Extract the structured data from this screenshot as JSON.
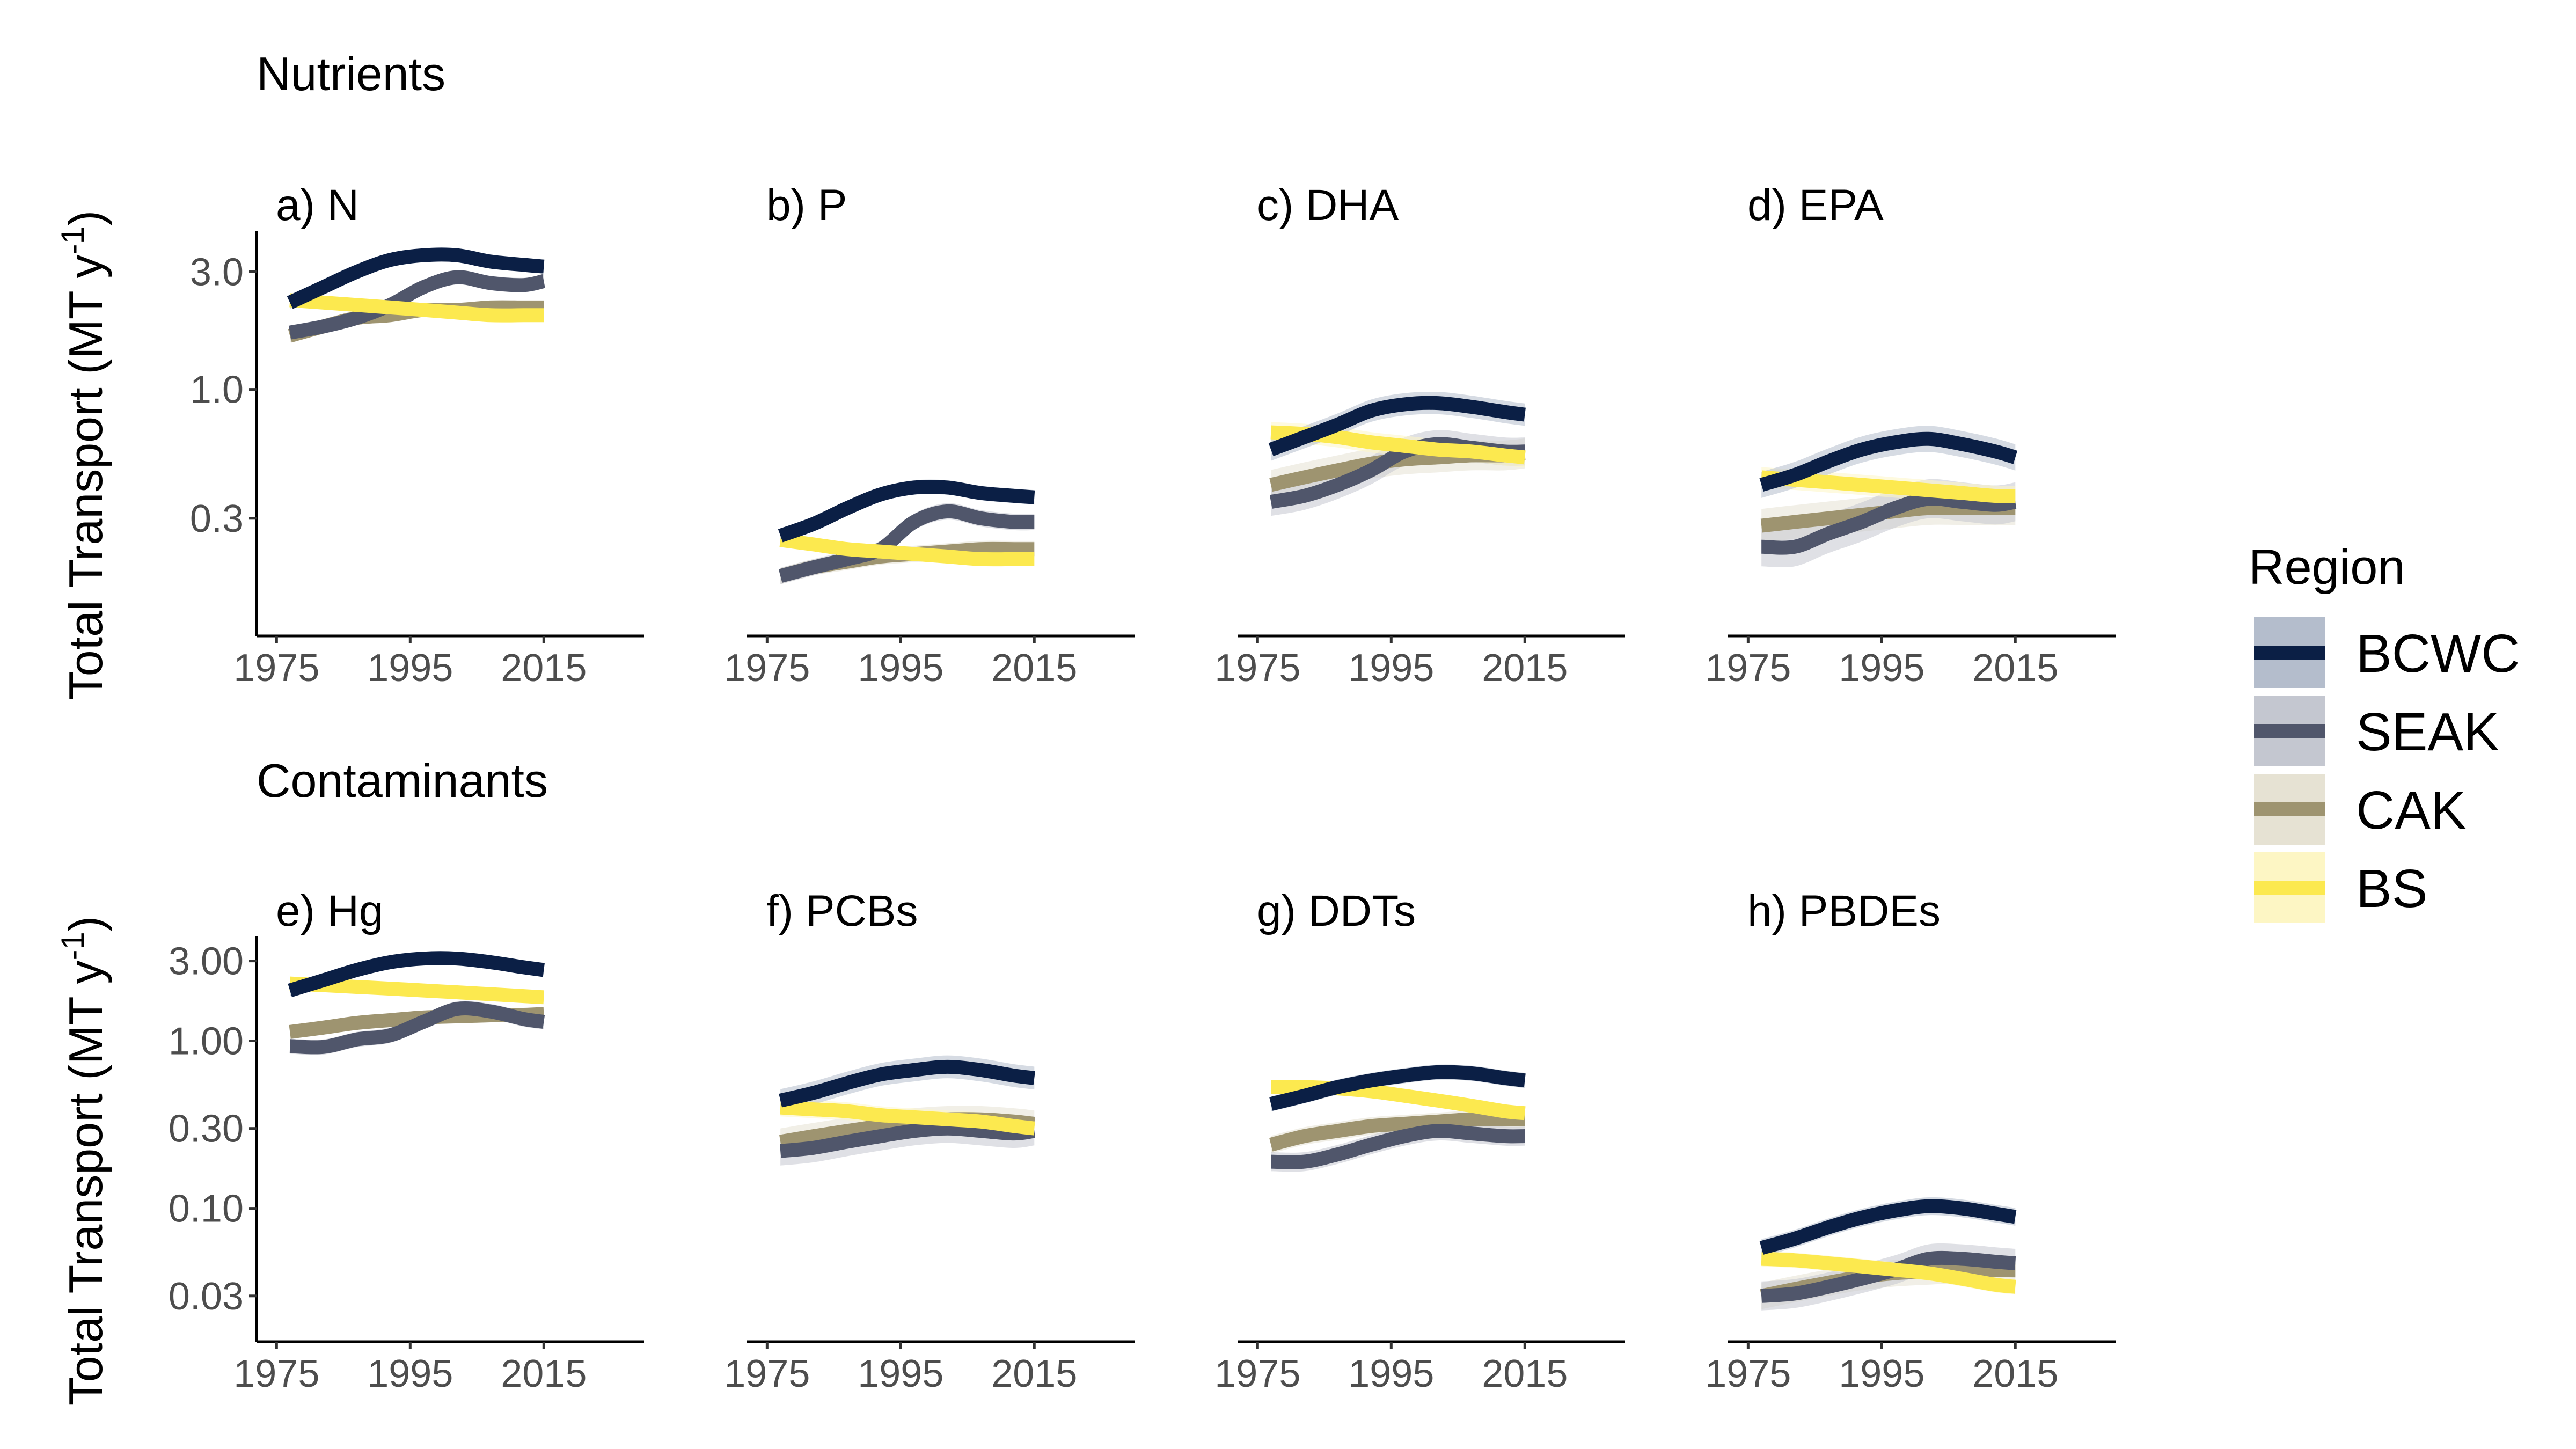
{
  "sections": [
    "Nutrients",
    "Contaminants"
  ],
  "ylabel": "Total Transport (MT y",
  "ylabel_sup": "-1",
  "ylabel_end": ")",
  "legend": {
    "title": "Region",
    "entries": [
      {
        "name": "BCWC",
        "color": "#0b1f45",
        "band": "#b4bdcc"
      },
      {
        "name": "SEAK",
        "color": "#50566b",
        "band": "#c4c7d0"
      },
      {
        "name": "CAK",
        "color": "#9e9470",
        "band": "#e6e2d3"
      },
      {
        "name": "BS",
        "color": "#fce94f",
        "band": "#fdf6c4"
      }
    ]
  },
  "colors": {
    "BCWC": "#0b1f45",
    "SEAK": "#50566b",
    "CAK": "#9e9470",
    "BS": "#fce94f"
  },
  "chart_data": [
    {
      "type": "line",
      "title": "a) N",
      "scale": "log",
      "xlim": [
        1972,
        2030
      ],
      "x_ticks": [
        "1975",
        "1995",
        "2015"
      ],
      "y_ticks": [
        {
          "v": 0.3,
          "label": "0.3"
        },
        {
          "v": 1,
          "label": "1.0"
        },
        {
          "v": 3,
          "label": "3.0"
        }
      ],
      "ylim": [
        0.1,
        4.4
      ],
      "x": [
        1977,
        1982,
        1987,
        1992,
        1997,
        2002,
        2007,
        2012,
        2015
      ],
      "series": [
        {
          "name": "BCWC",
          "values": [
            2.25,
            2.6,
            3.0,
            3.35,
            3.5,
            3.5,
            3.3,
            3.2,
            3.15
          ],
          "band": 0.06
        },
        {
          "name": "SEAK",
          "values": [
            1.7,
            1.8,
            1.95,
            2.2,
            2.6,
            2.85,
            2.7,
            2.65,
            2.75
          ],
          "band": 0.07
        },
        {
          "name": "CAK",
          "values": [
            1.65,
            1.8,
            1.95,
            2.0,
            2.1,
            2.1,
            2.15,
            2.15,
            2.15
          ],
          "band": 0.06
        },
        {
          "name": "BS",
          "values": [
            2.3,
            2.25,
            2.2,
            2.15,
            2.1,
            2.05,
            2.0,
            2.0,
            2.0
          ],
          "band": 0.05
        }
      ]
    },
    {
      "type": "line",
      "title": "b) P",
      "scale": "log",
      "xlim": [
        1972,
        2030
      ],
      "x_ticks": [
        "1975",
        "1995",
        "2015"
      ],
      "y_ticks": [],
      "ylim": [
        0.1,
        4.4
      ],
      "x": [
        1977,
        1982,
        1987,
        1992,
        1997,
        2002,
        2007,
        2012,
        2015
      ],
      "series": [
        {
          "name": "BCWC",
          "values": [
            0.255,
            0.285,
            0.33,
            0.375,
            0.4,
            0.4,
            0.38,
            0.37,
            0.365
          ],
          "band": 0.07
        },
        {
          "name": "SEAK",
          "values": [
            0.175,
            0.19,
            0.205,
            0.225,
            0.29,
            0.32,
            0.3,
            0.29,
            0.29
          ],
          "band": 0.08
        },
        {
          "name": "CAK",
          "values": [
            0.175,
            0.19,
            0.2,
            0.21,
            0.215,
            0.22,
            0.225,
            0.225,
            0.225
          ],
          "band": 0.08
        },
        {
          "name": "BS",
          "values": [
            0.245,
            0.235,
            0.225,
            0.22,
            0.215,
            0.21,
            0.205,
            0.205,
            0.205
          ],
          "band": 0.06
        }
      ]
    },
    {
      "type": "line",
      "title": "c) DHA",
      "scale": "log",
      "xlim": [
        1972,
        2030
      ],
      "x_ticks": [
        "1975",
        "1995",
        "2015"
      ],
      "y_ticks": [],
      "ylim": [
        0.1,
        4.4
      ],
      "x": [
        1977,
        1982,
        1987,
        1992,
        1997,
        2002,
        2007,
        2012,
        2015
      ],
      "series": [
        {
          "name": "BCWC",
          "values": [
            0.57,
            0.64,
            0.72,
            0.82,
            0.87,
            0.88,
            0.85,
            0.81,
            0.79
          ],
          "band": 0.11
        },
        {
          "name": "SEAK",
          "values": [
            0.35,
            0.37,
            0.41,
            0.47,
            0.56,
            0.6,
            0.58,
            0.56,
            0.56
          ],
          "band": 0.14
        },
        {
          "name": "CAK",
          "values": [
            0.41,
            0.44,
            0.47,
            0.5,
            0.52,
            0.53,
            0.54,
            0.54,
            0.55
          ],
          "band": 0.15
        },
        {
          "name": "BS",
          "values": [
            0.67,
            0.66,
            0.64,
            0.61,
            0.59,
            0.57,
            0.56,
            0.54,
            0.53
          ],
          "band": 0.1
        }
      ]
    },
    {
      "type": "line",
      "title": "d) EPA",
      "scale": "log",
      "xlim": [
        1972,
        2030
      ],
      "x_ticks": [
        "1975",
        "1995",
        "2015"
      ],
      "y_ticks": [],
      "ylim": [
        0.1,
        4.4
      ],
      "x": [
        1977,
        1982,
        1987,
        1992,
        1997,
        2002,
        2007,
        2012,
        2015
      ],
      "series": [
        {
          "name": "BCWC",
          "values": [
            0.41,
            0.45,
            0.51,
            0.57,
            0.61,
            0.63,
            0.6,
            0.56,
            0.53
          ],
          "band": 0.13
        },
        {
          "name": "SEAK",
          "values": [
            0.23,
            0.23,
            0.26,
            0.29,
            0.33,
            0.36,
            0.35,
            0.34,
            0.35
          ],
          "band": 0.2
        },
        {
          "name": "CAK",
          "values": [
            0.28,
            0.29,
            0.3,
            0.31,
            0.32,
            0.33,
            0.33,
            0.33,
            0.33
          ],
          "band": 0.17
        },
        {
          "name": "BS",
          "values": [
            0.44,
            0.43,
            0.42,
            0.41,
            0.4,
            0.39,
            0.38,
            0.37,
            0.37
          ],
          "band": 0.1
        }
      ]
    },
    {
      "type": "line",
      "title": "e) Hg",
      "scale": "log",
      "xlim": [
        1972,
        2030
      ],
      "x_ticks": [
        "1975",
        "1995",
        "2015"
      ],
      "y_ticks": [
        {
          "v": 0.03,
          "label": "0.03"
        },
        {
          "v": 0.1,
          "label": "0.10"
        },
        {
          "v": 0.3,
          "label": "0.30"
        },
        {
          "v": 1,
          "label": "1.00"
        },
        {
          "v": 3,
          "label": "3.00"
        }
      ],
      "ylim": [
        0.016,
        4.2
      ],
      "x": [
        1977,
        1982,
        1987,
        1992,
        1997,
        2002,
        2007,
        2012,
        2015
      ],
      "series": [
        {
          "name": "BCWC",
          "values": [
            2.0,
            2.3,
            2.65,
            2.95,
            3.1,
            3.1,
            2.95,
            2.75,
            2.65
          ],
          "band": 0.08
        },
        {
          "name": "SEAK",
          "values": [
            0.93,
            0.92,
            1.02,
            1.08,
            1.3,
            1.55,
            1.5,
            1.35,
            1.3
          ],
          "band": 0.11
        },
        {
          "name": "CAK",
          "values": [
            1.13,
            1.2,
            1.28,
            1.33,
            1.38,
            1.4,
            1.42,
            1.43,
            1.45
          ],
          "band": 0.1
        },
        {
          "name": "BS",
          "values": [
            2.2,
            2.15,
            2.1,
            2.05,
            2.0,
            1.95,
            1.9,
            1.85,
            1.82
          ],
          "band": 0.07
        }
      ]
    },
    {
      "type": "line",
      "title": "f) PCBs",
      "scale": "log",
      "xlim": [
        1972,
        2030
      ],
      "x_ticks": [
        "1975",
        "1995",
        "2015"
      ],
      "y_ticks": [],
      "ylim": [
        0.016,
        4.2
      ],
      "x": [
        1977,
        1982,
        1987,
        1992,
        1997,
        2002,
        2007,
        2012,
        2015
      ],
      "series": [
        {
          "name": "BCWC",
          "values": [
            0.44,
            0.49,
            0.56,
            0.63,
            0.67,
            0.7,
            0.67,
            0.62,
            0.6
          ],
          "band": 0.17
        },
        {
          "name": "SEAK",
          "values": [
            0.22,
            0.23,
            0.25,
            0.27,
            0.29,
            0.3,
            0.29,
            0.28,
            0.29
          ],
          "band": 0.22
        },
        {
          "name": "CAK",
          "values": [
            0.25,
            0.27,
            0.29,
            0.31,
            0.33,
            0.34,
            0.34,
            0.33,
            0.32
          ],
          "band": 0.2
        },
        {
          "name": "BS",
          "values": [
            0.4,
            0.39,
            0.38,
            0.36,
            0.35,
            0.34,
            0.33,
            0.31,
            0.3
          ],
          "band": 0.13
        }
      ]
    },
    {
      "type": "line",
      "title": "g) DDTs",
      "scale": "log",
      "xlim": [
        1972,
        2030
      ],
      "x_ticks": [
        "1975",
        "1995",
        "2015"
      ],
      "y_ticks": [],
      "ylim": [
        0.016,
        4.2
      ],
      "x": [
        1977,
        1982,
        1987,
        1992,
        1997,
        2002,
        2007,
        2012,
        2015
      ],
      "series": [
        {
          "name": "BCWC",
          "values": [
            0.42,
            0.47,
            0.53,
            0.58,
            0.62,
            0.65,
            0.64,
            0.6,
            0.58
          ],
          "band": 0.11
        },
        {
          "name": "SEAK",
          "values": [
            0.19,
            0.19,
            0.21,
            0.24,
            0.27,
            0.29,
            0.28,
            0.27,
            0.27
          ],
          "band": 0.14
        },
        {
          "name": "CAK",
          "values": [
            0.24,
            0.27,
            0.29,
            0.31,
            0.32,
            0.33,
            0.34,
            0.34,
            0.34
          ],
          "band": 0.13
        },
        {
          "name": "BS",
          "values": [
            0.53,
            0.53,
            0.52,
            0.5,
            0.47,
            0.44,
            0.41,
            0.38,
            0.37
          ],
          "band": 0.09
        }
      ]
    },
    {
      "type": "line",
      "title": "h) PBDEs",
      "scale": "log",
      "xlim": [
        1972,
        2030
      ],
      "x_ticks": [
        "1975",
        "1995",
        "2015"
      ],
      "y_ticks": [],
      "ylim": [
        0.016,
        4.2
      ],
      "x": [
        1977,
        1982,
        1987,
        1992,
        1997,
        2002,
        2007,
        2012,
        2015
      ],
      "series": [
        {
          "name": "BCWC",
          "values": [
            0.058,
            0.066,
            0.077,
            0.088,
            0.097,
            0.103,
            0.1,
            0.093,
            0.089
          ],
          "band": 0.13
        },
        {
          "name": "SEAK",
          "values": [
            0.03,
            0.031,
            0.034,
            0.038,
            0.043,
            0.05,
            0.05,
            0.048,
            0.047
          ],
          "band": 0.22
        },
        {
          "name": "CAK",
          "values": [
            0.03,
            0.033,
            0.036,
            0.039,
            0.041,
            0.042,
            0.043,
            0.043,
            0.043
          ],
          "band": 0.2
        },
        {
          "name": "BS",
          "values": [
            0.05,
            0.049,
            0.047,
            0.045,
            0.043,
            0.041,
            0.038,
            0.035,
            0.034
          ],
          "band": 0.11
        }
      ]
    }
  ]
}
